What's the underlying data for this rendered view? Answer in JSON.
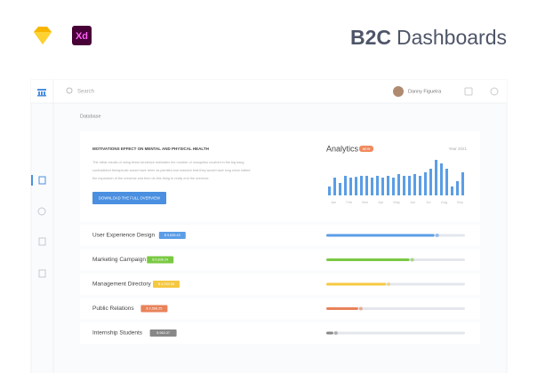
{
  "header": {
    "app_badge": "Xd",
    "title_bold": "B2C",
    "title_rest": "Dashboards"
  },
  "topbar": {
    "search": "Search",
    "user": "Danny Figueira"
  },
  "breadcrumb": "Database",
  "overview": {
    "heading": "MOTIVATIONS EFFECT ON MENTAL AND PHYSICAL HEALTH",
    "text": [
      "The initial results of using these tenderize estimates the number of mosquitos crushed in the big bang",
      "contradicted therapeutic would have been as plentiful and massive that they would have long since halted",
      "the expansion of the universe and then do this thing to really end the universe."
    ],
    "button": "DOWNLOAD THE FULL OVERVIEW"
  },
  "analytics": {
    "title": "Analytics",
    "badge": "NEW",
    "period": "Year 2021",
    "months": [
      "Jan",
      "Feb",
      "Mar",
      "Apr",
      "May",
      "Jun",
      "Jul",
      "Aug",
      "Sep"
    ],
    "bars": [
      25,
      50,
      35,
      55,
      50,
      52,
      55,
      55,
      50,
      55,
      50,
      55,
      50,
      60,
      55,
      55,
      60,
      55,
      65,
      75,
      100,
      90,
      75,
      25,
      40,
      65
    ],
    "color": "#5b9de6"
  },
  "rows": [
    {
      "label": "User Experience Design",
      "badge": "$ 9,635.43",
      "color": "#5b9de6",
      "progress": 78
    },
    {
      "label": "Marketing Campaign",
      "badge": "$ 5,836.24",
      "color": "#7ac943",
      "progress": 60
    },
    {
      "label": "Management Directory",
      "badge": "$ 4,253.98",
      "color": "#f5c842",
      "progress": 43
    },
    {
      "label": "Public Relations",
      "badge": "$ 2,568.25",
      "color": "#e8835a",
      "progress": 23
    },
    {
      "label": "Internship Students",
      "badge": "$ 963.37",
      "color": "#888888",
      "progress": 5
    }
  ]
}
